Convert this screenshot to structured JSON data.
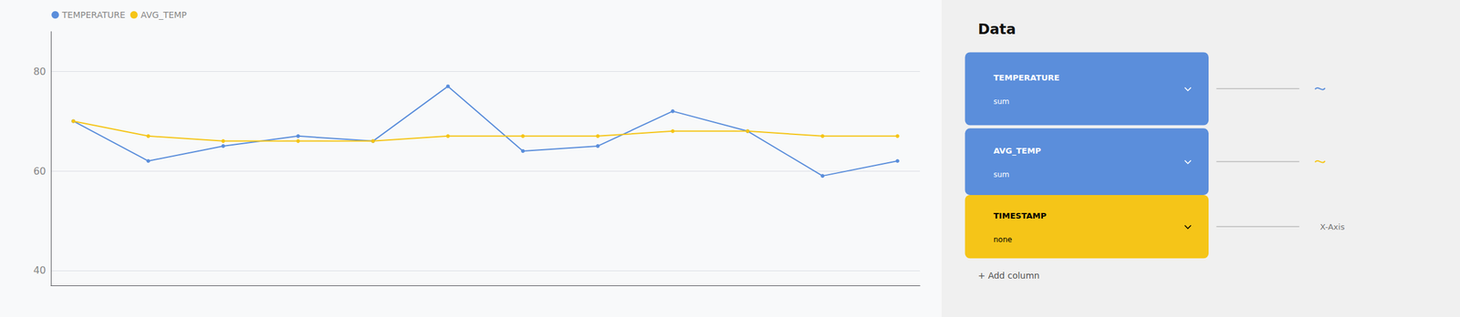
{
  "chart_data": {
    "type": "line",
    "x": [
      0,
      1,
      2,
      3,
      4,
      5,
      6,
      7,
      8,
      9,
      10,
      11
    ],
    "series": [
      {
        "name": "TEMPERATURE",
        "color": "#5B8EDB",
        "values": [
          70,
          62,
          65,
          67,
          66,
          77,
          64,
          65,
          72,
          68,
          59,
          62
        ]
      },
      {
        "name": "AVG_TEMP",
        "color": "#F5C518",
        "values": [
          70,
          67,
          66,
          66,
          66,
          67,
          67,
          67,
          68,
          68,
          67,
          67
        ]
      }
    ],
    "xlim": [
      -0.3,
      11.3
    ],
    "ylim": [
      37,
      88
    ],
    "yticks": [
      40,
      60,
      80
    ],
    "grid": true,
    "legend": "upper left",
    "marker": "circle",
    "tick_labels": "y",
    "annotations": [
      "Data",
      "TEMPERATURE",
      "sum",
      "AVG_TEMP",
      "sum",
      "TIMESTAMP",
      "none",
      "X-Axis",
      "+ Add column"
    ]
  }
}
